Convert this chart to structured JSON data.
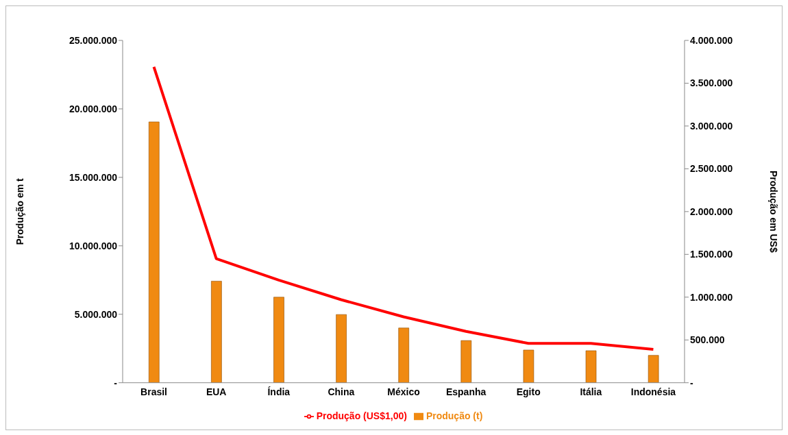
{
  "chart_data": {
    "type": "bar",
    "categories": [
      "Brasil",
      "EUA",
      "Índia",
      "China",
      "México",
      "Espanha",
      "Egito",
      "Itália",
      "Indonésia"
    ],
    "series": [
      {
        "name": "Produção (t)",
        "color": "#f08a12",
        "values": [
          19050000,
          7420000,
          6250000,
          4980000,
          4000000,
          3080000,
          2390000,
          2340000,
          2000000
        ]
      },
      {
        "name": "Produção (US$1,00)",
        "type": "line",
        "axis": "y2",
        "color": "#ff0000",
        "values": [
          3690000,
          1450000,
          1200000,
          970000,
          770000,
          600000,
          460000,
          460000,
          390000
        ]
      }
    ],
    "ylabel": "Produção em t",
    "y2label": "Produção em US$",
    "ylim": [
      0,
      25000000
    ],
    "yticks": [
      {
        "value": 0,
        "label": "-"
      },
      {
        "value": 5000000,
        "label": "5.000.000"
      },
      {
        "value": 10000000,
        "label": "10.000.000"
      },
      {
        "value": 15000000,
        "label": "15.000.000"
      },
      {
        "value": 20000000,
        "label": "20.000.000"
      },
      {
        "value": 25000000,
        "label": "25.000.000"
      }
    ],
    "y2lim": [
      0,
      4000000
    ],
    "y2ticks": [
      {
        "value": 0,
        "label": "-"
      },
      {
        "value": 500000,
        "label": "500.000"
      },
      {
        "value": 1000000,
        "label": "1.000.000"
      },
      {
        "value": 1500000,
        "label": "1.500.000"
      },
      {
        "value": 2000000,
        "label": "2.000.000"
      },
      {
        "value": 2500000,
        "label": "2.500.000"
      },
      {
        "value": 3000000,
        "label": "3.000.000"
      },
      {
        "value": 3500000,
        "label": "3.500.000"
      },
      {
        "value": 4000000,
        "label": "4.000.000"
      }
    ],
    "legend": "bottom",
    "grid": false,
    "marker": "none"
  }
}
